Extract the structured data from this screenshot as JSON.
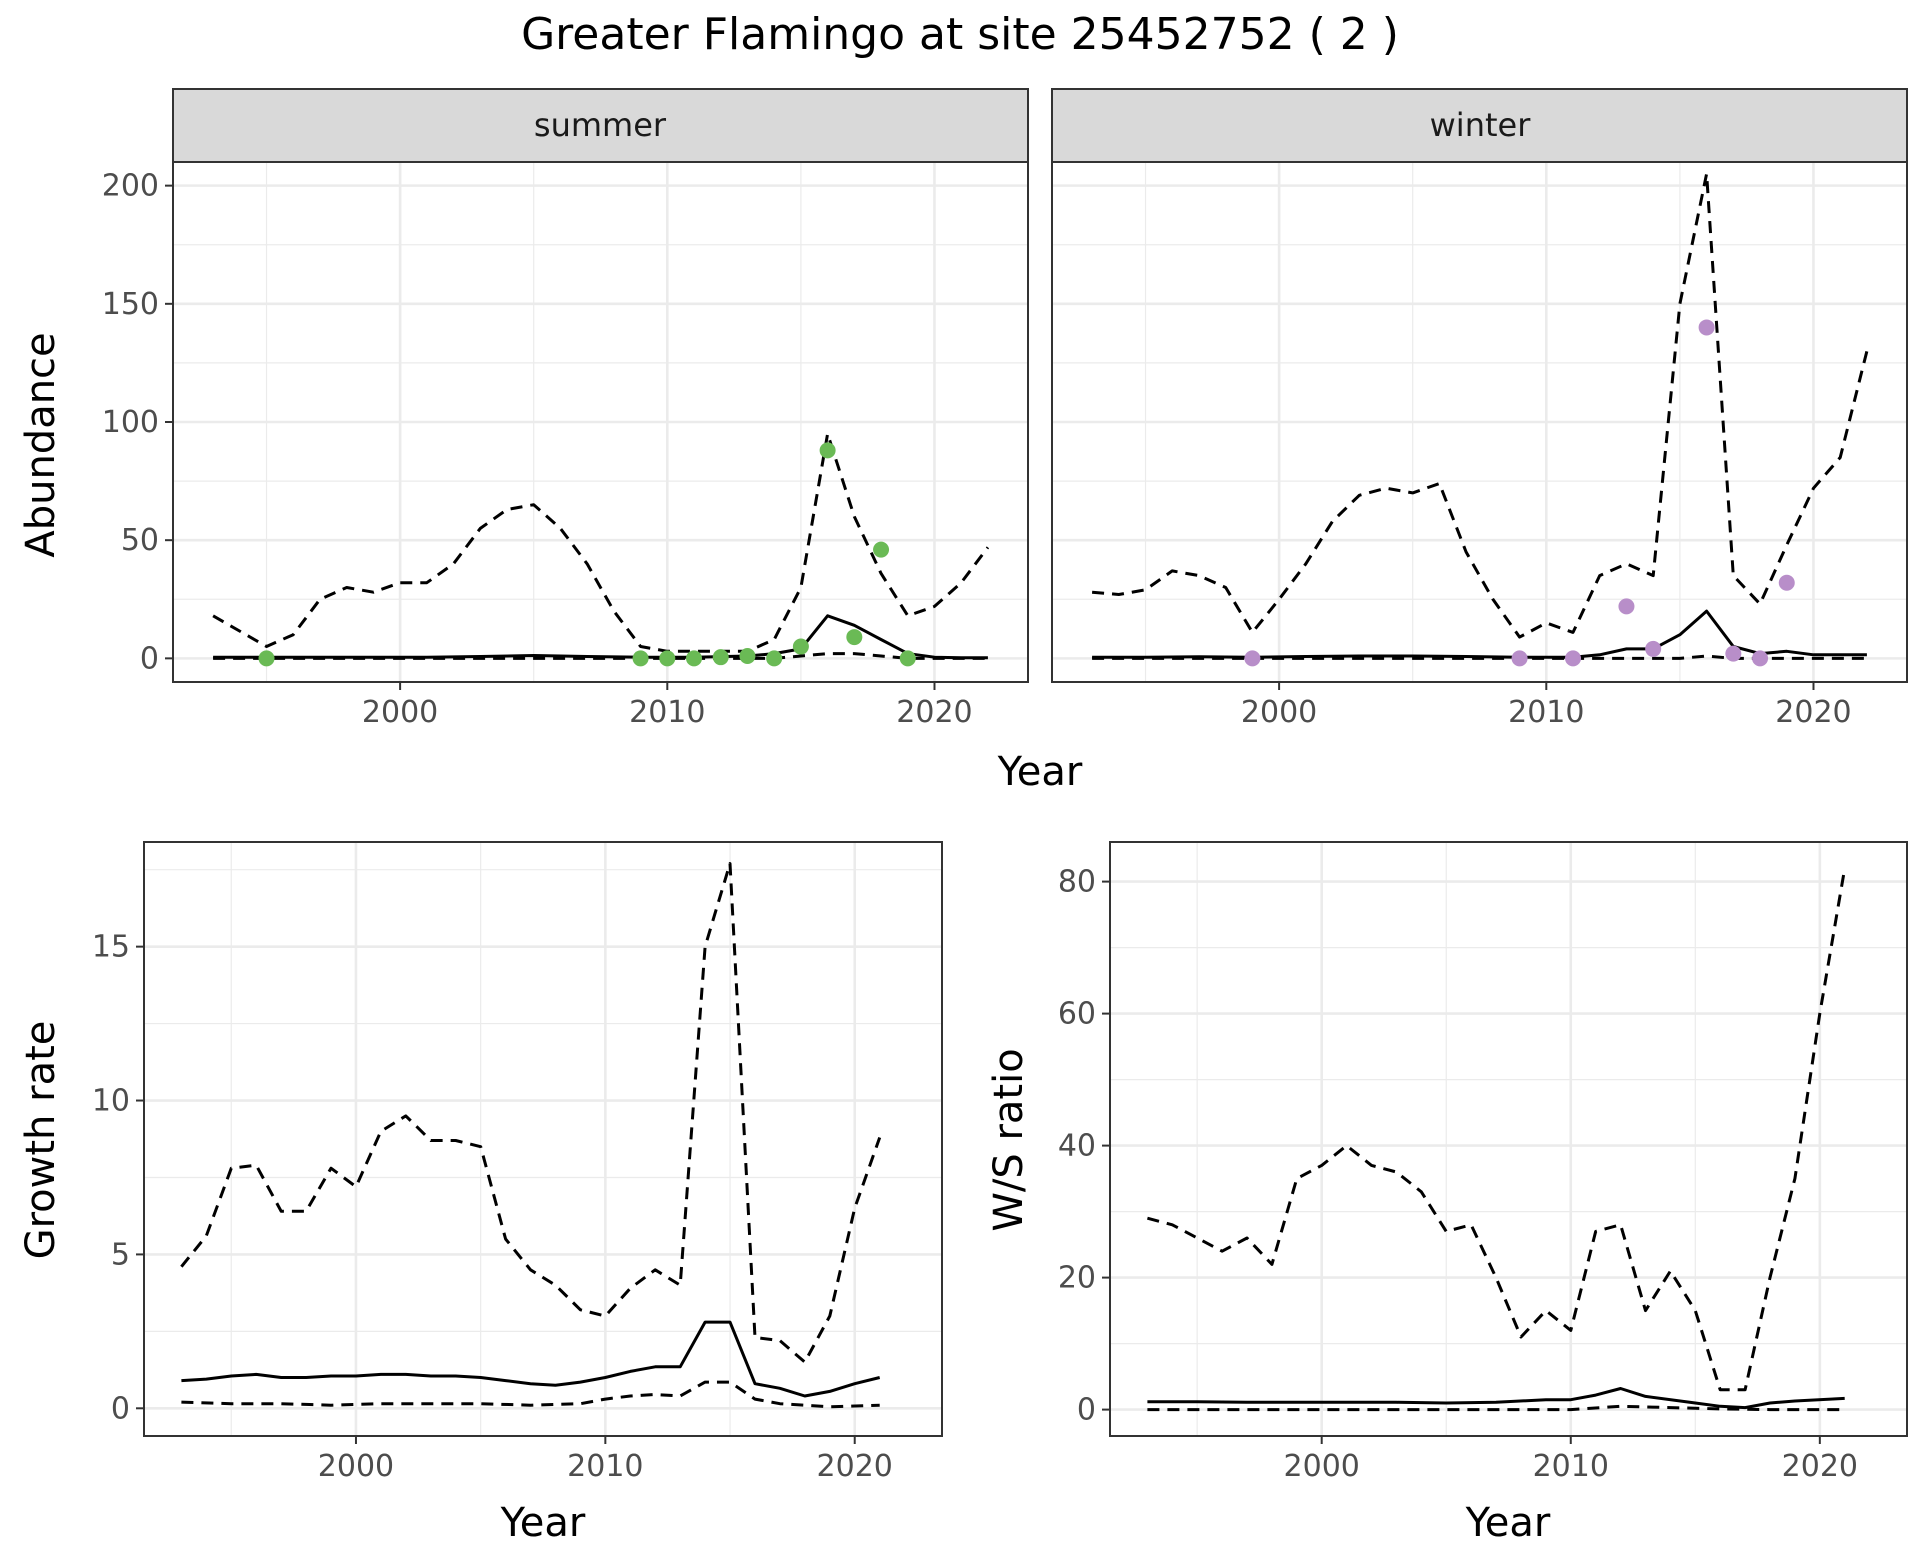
{
  "title": "Greater Flamingo at site 25452752 ( 2 )",
  "colors": {
    "summer_points": "#6aba55",
    "winter_points": "#b88ec9",
    "line": "#000000",
    "strip_fill": "#d9d9d9",
    "grid": "#ebebeb"
  },
  "chart_data": [
    {
      "type": "line",
      "panel": "abundance",
      "facet_label": "summer",
      "xlabel": "Year",
      "ylabel": "Abundance",
      "xlim": [
        1991.5,
        2023.5
      ],
      "ylim": [
        -10,
        210
      ],
      "x_ticks": [
        2000,
        2010,
        2020
      ],
      "y_ticks": [
        0,
        50,
        100,
        150,
        200
      ],
      "grid": true,
      "series": [
        {
          "style": "solid",
          "x": [
            1993,
            1995,
            1997,
            1999,
            2001,
            2003,
            2005,
            2006,
            2007,
            2009,
            2011,
            2013,
            2014,
            2015,
            2016,
            2017,
            2018,
            2019,
            2020,
            2021,
            2022
          ],
          "values": [
            0.5,
            0.5,
            0.5,
            0.5,
            0.5,
            0.8,
            1.2,
            1.0,
            0.8,
            0.5,
            0.5,
            1,
            2,
            4,
            18,
            14,
            8,
            2,
            0.5,
            0.3,
            0.3
          ]
        },
        {
          "style": "dashed-upper",
          "x": [
            1993,
            1995,
            1996,
            1997,
            1998,
            1999,
            2000,
            2001,
            2002,
            2003,
            2004,
            2005,
            2006,
            2007,
            2008,
            2009,
            2010,
            2011,
            2012,
            2013,
            2014,
            2015,
            2016,
            2017,
            2018,
            2019,
            2020,
            2021,
            2022
          ],
          "values": [
            18,
            5,
            10,
            25,
            30,
            28,
            32,
            32,
            40,
            55,
            63,
            65,
            55,
            40,
            20,
            5,
            3,
            3,
            3,
            3,
            8,
            30,
            95,
            60,
            36,
            18,
            22,
            32,
            47
          ]
        },
        {
          "style": "dashed-lower",
          "x": [
            1993,
            2000,
            2010,
            2014,
            2015,
            2016,
            2017,
            2018,
            2019,
            2022
          ],
          "values": [
            0,
            0,
            0,
            0,
            1,
            2,
            2,
            1,
            0,
            0
          ]
        }
      ],
      "points": {
        "x": [
          1995,
          2009,
          2010,
          2011,
          2012,
          2013,
          2014,
          2015,
          2016,
          2017,
          2018,
          2019
        ],
        "values": [
          0,
          0,
          0,
          0,
          0.5,
          1,
          0,
          5,
          88,
          9,
          46,
          0
        ]
      }
    },
    {
      "type": "line",
      "panel": "abundance",
      "facet_label": "winter",
      "xlabel": "Year",
      "xlim": [
        1991.5,
        2023.5
      ],
      "ylim": [
        -10,
        210
      ],
      "x_ticks": [
        2000,
        2010,
        2020
      ],
      "y_ticks": [
        0,
        50,
        100,
        150,
        200
      ],
      "grid": true,
      "series": [
        {
          "style": "solid",
          "x": [
            1993,
            1995,
            1997,
            1999,
            2001,
            2003,
            2005,
            2007,
            2009,
            2011,
            2012,
            2013,
            2014,
            2015,
            2016,
            2017,
            2018,
            2019,
            2020,
            2021,
            2022
          ],
          "values": [
            0.5,
            0.5,
            0.7,
            0.5,
            0.8,
            1,
            1,
            0.8,
            0.5,
            0.5,
            1.5,
            4,
            4,
            10,
            20,
            5,
            2,
            3,
            1.5,
            1.5,
            1.5
          ]
        },
        {
          "style": "dashed-upper",
          "x": [
            1993,
            1994,
            1995,
            1996,
            1997,
            1998,
            1999,
            2000,
            2001,
            2002,
            2003,
            2004,
            2005,
            2006,
            2007,
            2008,
            2009,
            2010,
            2011,
            2012,
            2013,
            2014,
            2015,
            2016,
            2017,
            2018,
            2019,
            2020,
            2021,
            2022
          ],
          "values": [
            28,
            27,
            29,
            37,
            35,
            30,
            11,
            25,
            40,
            58,
            69,
            72,
            70,
            74,
            45,
            25,
            9,
            15,
            11,
            35,
            40,
            35,
            150,
            205,
            35,
            23,
            48,
            72,
            85,
            130
          ]
        },
        {
          "style": "dashed-lower",
          "x": [
            1993,
            2000,
            2010,
            2014,
            2015,
            2016,
            2017,
            2018,
            2022
          ],
          "values": [
            0,
            0,
            0,
            0,
            0,
            1,
            0,
            0,
            0
          ]
        }
      ],
      "points": {
        "x": [
          1999,
          2009,
          2011,
          2013,
          2014,
          2016,
          2017,
          2018,
          2019
        ],
        "values": [
          0,
          0,
          0,
          22,
          4,
          140,
          2,
          0,
          32
        ]
      }
    },
    {
      "type": "line",
      "panel": "growth",
      "xlabel": "Year",
      "ylabel": "Growth rate",
      "xlim": [
        1991.5,
        2023.5
      ],
      "ylim": [
        -0.9,
        18.4
      ],
      "x_ticks": [
        2000,
        2010,
        2020
      ],
      "y_ticks": [
        0,
        5,
        10,
        15
      ],
      "grid": true,
      "series": [
        {
          "style": "solid",
          "x": [
            1993,
            1994,
            1995,
            1996,
            1997,
            1998,
            1999,
            2000,
            2001,
            2002,
            2003,
            2004,
            2005,
            2006,
            2007,
            2008,
            2009,
            2010,
            2011,
            2012,
            2013,
            2014,
            2015,
            2016,
            2017,
            2018,
            2019,
            2020,
            2021
          ],
          "values": [
            0.9,
            0.95,
            1.05,
            1.1,
            1.0,
            1.0,
            1.05,
            1.05,
            1.1,
            1.1,
            1.05,
            1.05,
            1.0,
            0.9,
            0.8,
            0.75,
            0.85,
            1.0,
            1.2,
            1.35,
            1.35,
            2.8,
            2.8,
            0.8,
            0.65,
            0.4,
            0.55,
            0.8,
            1.0
          ]
        },
        {
          "style": "dashed-upper",
          "x": [
            1993,
            1994,
            1995,
            1996,
            1997,
            1998,
            1999,
            2000,
            2001,
            2002,
            2003,
            2004,
            2005,
            2006,
            2007,
            2008,
            2009,
            2010,
            2011,
            2012,
            2013,
            2014,
            2015,
            2016,
            2017,
            2018,
            2019,
            2020,
            2021
          ],
          "values": [
            4.6,
            5.6,
            7.8,
            7.9,
            6.4,
            6.4,
            7.8,
            7.2,
            9.0,
            9.5,
            8.7,
            8.7,
            8.5,
            5.5,
            4.5,
            4.0,
            3.2,
            3.0,
            3.9,
            4.5,
            4.0,
            15.0,
            17.7,
            2.3,
            2.2,
            1.5,
            3.0,
            6.5,
            8.8
          ]
        },
        {
          "style": "dashed-lower",
          "x": [
            1993,
            1995,
            1997,
            1999,
            2001,
            2003,
            2005,
            2007,
            2009,
            2010,
            2011,
            2012,
            2013,
            2014,
            2015,
            2016,
            2017,
            2018,
            2019,
            2021
          ],
          "values": [
            0.2,
            0.15,
            0.15,
            0.1,
            0.15,
            0.15,
            0.15,
            0.1,
            0.15,
            0.3,
            0.4,
            0.45,
            0.4,
            0.85,
            0.85,
            0.3,
            0.15,
            0.1,
            0.05,
            0.1
          ]
        }
      ]
    },
    {
      "type": "line",
      "panel": "ratio",
      "xlabel": "Year",
      "ylabel": "W/S ratio",
      "xlim": [
        1991.5,
        2023.5
      ],
      "ylim": [
        -4,
        86
      ],
      "x_ticks": [
        2000,
        2010,
        2020
      ],
      "y_ticks": [
        0,
        20,
        40,
        60,
        80
      ],
      "grid": true,
      "series": [
        {
          "style": "solid",
          "x": [
            1993,
            1995,
            1997,
            1999,
            2001,
            2003,
            2005,
            2007,
            2009,
            2010,
            2011,
            2012,
            2013,
            2015,
            2016,
            2017,
            2018,
            2019,
            2021
          ],
          "values": [
            1.2,
            1.2,
            1.1,
            1.1,
            1.1,
            1.1,
            1.0,
            1.1,
            1.5,
            1.5,
            2.2,
            3.2,
            2.0,
            1.0,
            0.5,
            0.3,
            1.0,
            1.3,
            1.7
          ]
        },
        {
          "style": "dashed-upper",
          "x": [
            1993,
            1994,
            1995,
            1996,
            1997,
            1998,
            1999,
            2000,
            2001,
            2002,
            2003,
            2004,
            2005,
            2006,
            2007,
            2008,
            2009,
            2010,
            2011,
            2012,
            2013,
            2014,
            2015,
            2016,
            2017,
            2018,
            2019,
            2020,
            2021
          ],
          "values": [
            29,
            28,
            26,
            24,
            26,
            22,
            35,
            37,
            40,
            37,
            36,
            33,
            27,
            28,
            20,
            11,
            15,
            12,
            27,
            28,
            15,
            21,
            15,
            3,
            3,
            20,
            35,
            60,
            82
          ]
        },
        {
          "style": "dashed-lower",
          "x": [
            1993,
            2000,
            2010,
            2012,
            2014,
            2016,
            2018,
            2021
          ],
          "values": [
            0,
            0,
            0,
            0.5,
            0.3,
            0.1,
            0,
            0
          ]
        }
      ]
    }
  ]
}
